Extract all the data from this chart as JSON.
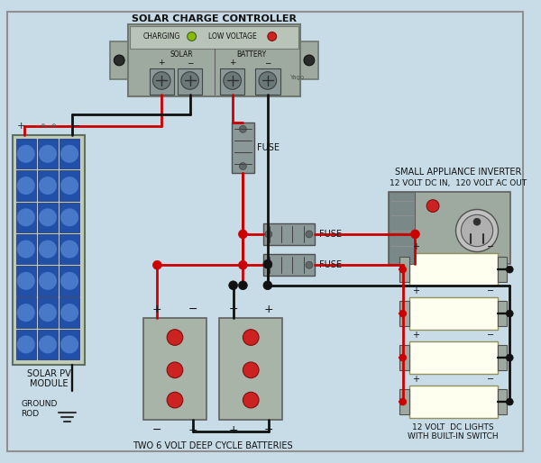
{
  "bg": "#c8dce8",
  "gray_body": "#9eaaa0",
  "gray_light": "#b8c4b8",
  "gray_dark": "#707870",
  "gray_bat": "#a8b4a8",
  "fuse_gray": "#8a9898",
  "inv_gray": "#9eaaa0",
  "inv_stripe": "#7a8888",
  "solar_blue": "#2050a8",
  "solar_hi": "#4878c8",
  "solar_bg": "#c0ccb8",
  "light_yellow": "#fffff0",
  "light_border": "#909060",
  "led_green": "#88bb00",
  "led_red": "#cc2222",
  "bat_red": "#cc2222",
  "RED": "#cc0000",
  "BLK": "#111111",
  "ctrl_label": "SOLAR CHARGE CONTROLLER",
  "inv_label1": "SMALL APPLIANCE INVERTER",
  "inv_label2": "12 VOLT DC IN,  120 VOLT AC OUT",
  "solar_label": "SOLAR PV\nMODULE",
  "ground_label": "GROUND\nROD",
  "bat_label": "TWO 6 VOLT DEEP CYCLE BATTERIES",
  "lights_label": "12 VOLT  DC LIGHTS\nWITH BUILT-IN SWITCH",
  "fuse_txt": "FUSE",
  "charging_txt": "CHARGING",
  "lowvolt_txt": "LOW VOLTAGE",
  "solar_txt": "SOLAR",
  "battery_txt": "BATTERY",
  "yago_txt": "Yago"
}
